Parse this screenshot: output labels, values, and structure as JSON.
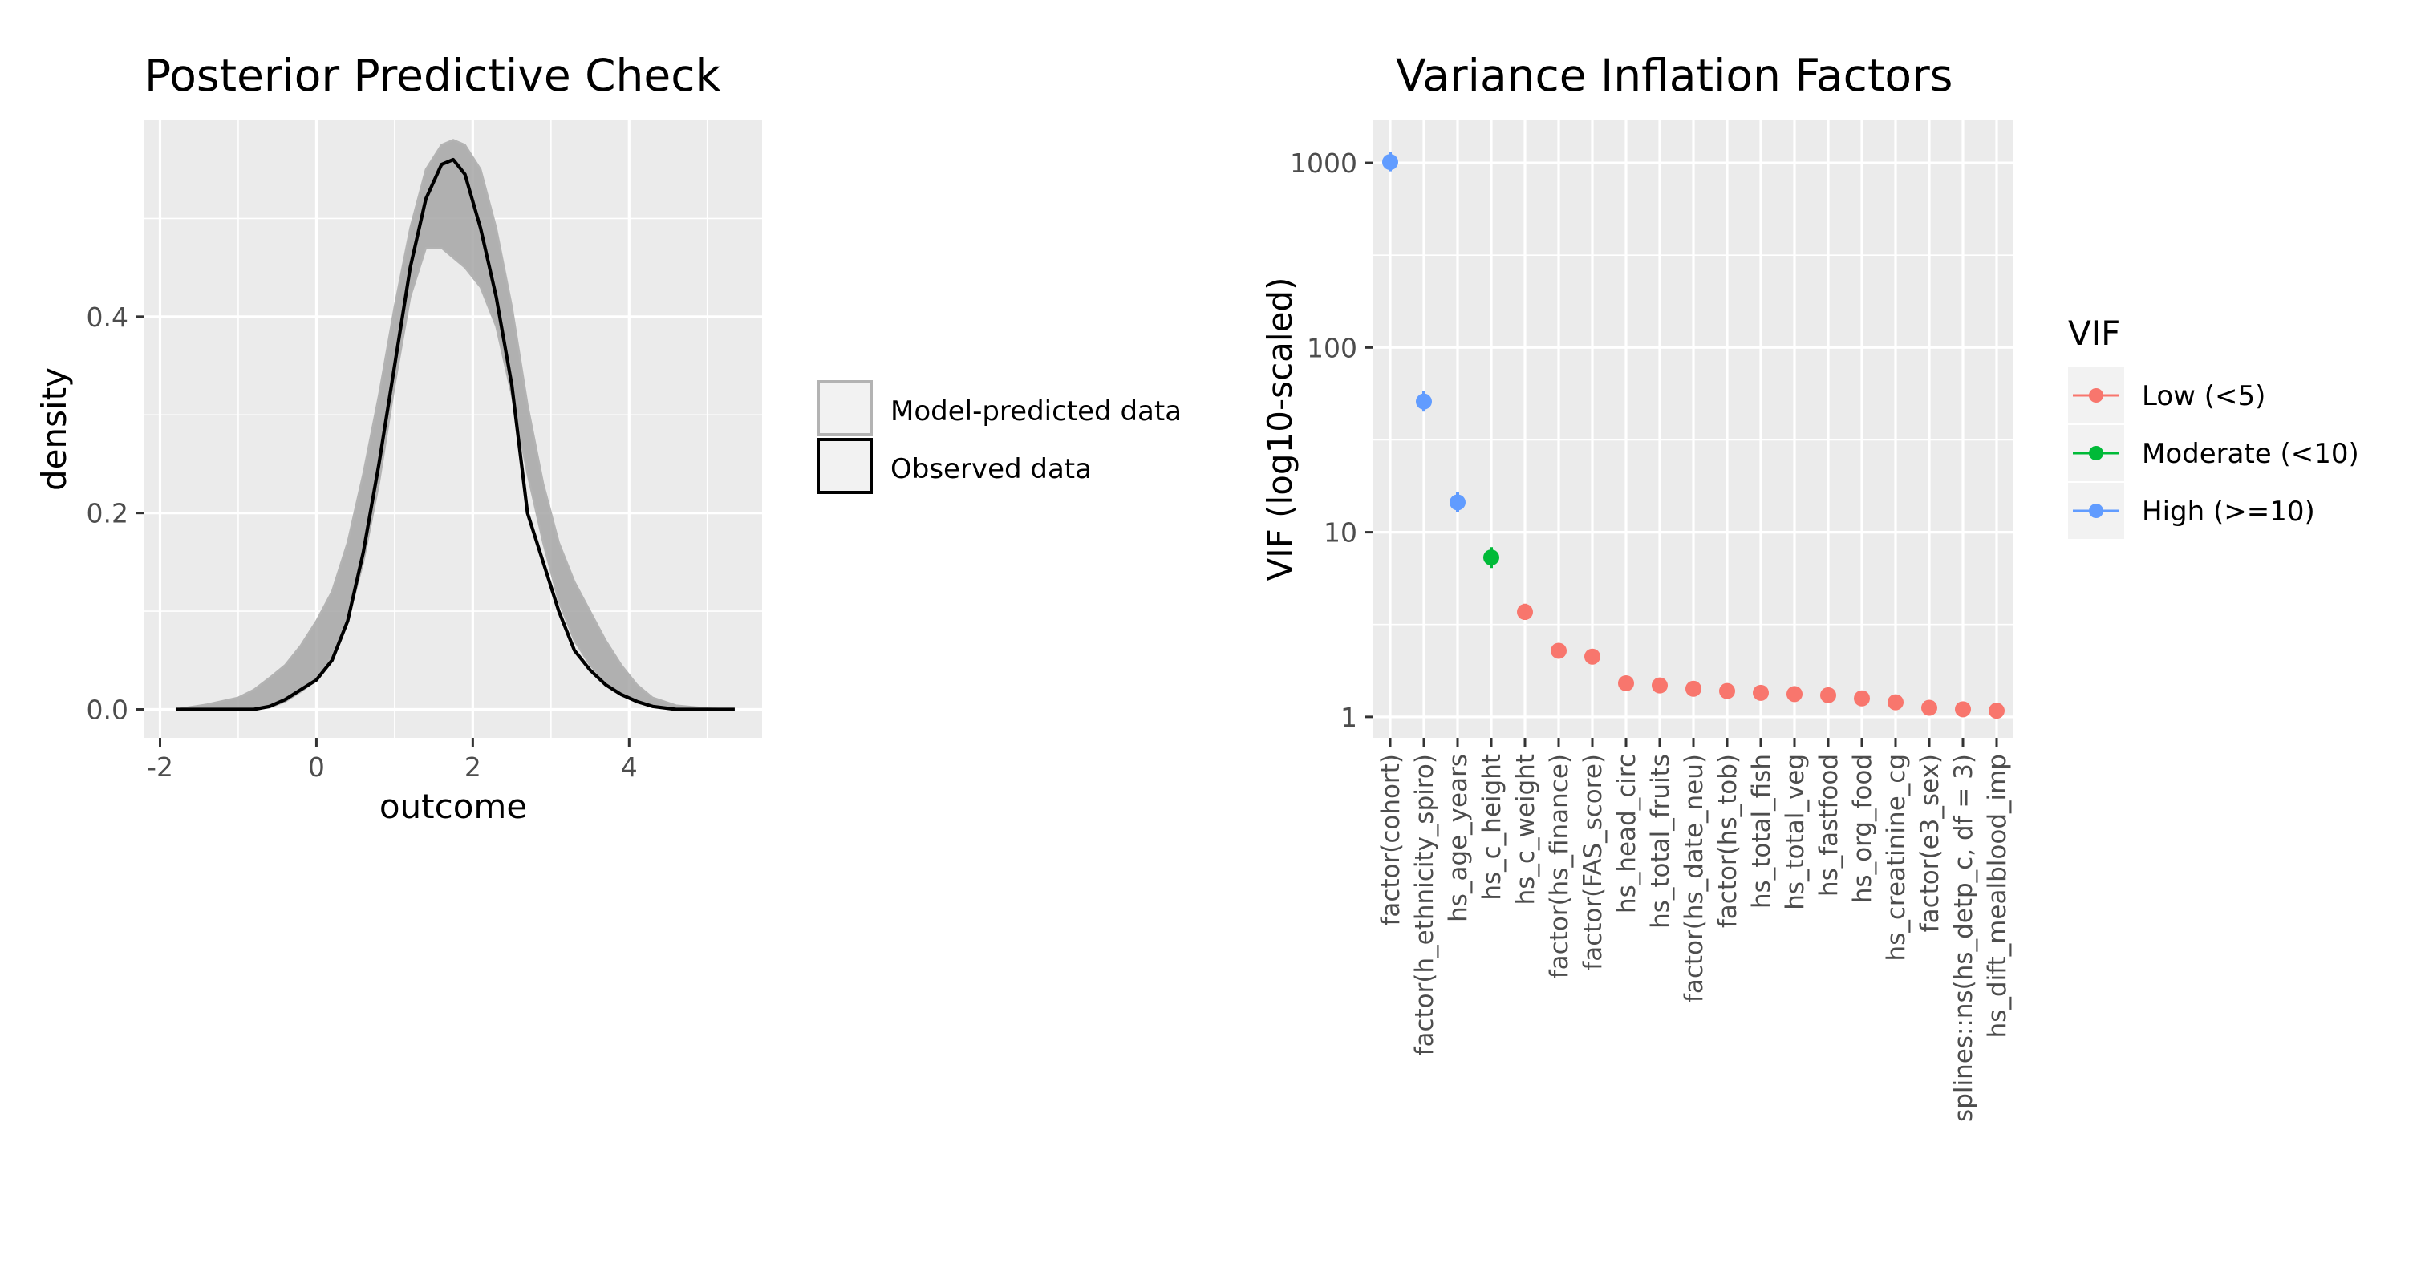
{
  "chart_data": [
    {
      "type": "area",
      "title": "Posterior Predictive Check",
      "xlabel": "outcome",
      "ylabel": "density",
      "xlim": [
        -2.2,
        5.7
      ],
      "ylim": [
        -0.029,
        0.6
      ],
      "x_ticks": [
        -2,
        0,
        2,
        4
      ],
      "x_tick_labels": [
        "-2",
        "0",
        "2",
        "4"
      ],
      "y_ticks": [
        0.0,
        0.2,
        0.4
      ],
      "y_tick_labels": [
        "0.0",
        "0.2",
        "0.4"
      ],
      "grid": true,
      "legend_position": "right",
      "legend": [
        {
          "label": "Model-predicted data",
          "color": "#b3b3b3"
        },
        {
          "label": "Observed data",
          "color": "#000000"
        }
      ],
      "series": [
        {
          "name": "Observed data",
          "color": "#000000",
          "x": [
            -1.8,
            -1.4,
            -1.0,
            -0.8,
            -0.6,
            -0.4,
            -0.2,
            0.0,
            0.2,
            0.4,
            0.6,
            0.8,
            1.0,
            1.2,
            1.4,
            1.6,
            1.75,
            1.9,
            2.1,
            2.3,
            2.5,
            2.7,
            2.9,
            3.1,
            3.3,
            3.5,
            3.7,
            3.9,
            4.1,
            4.3,
            4.6,
            5.0,
            5.35
          ],
          "y": [
            0.0,
            0.0,
            0.0,
            0.0,
            0.003,
            0.01,
            0.02,
            0.03,
            0.05,
            0.09,
            0.16,
            0.25,
            0.35,
            0.45,
            0.52,
            0.555,
            0.56,
            0.545,
            0.49,
            0.42,
            0.33,
            0.2,
            0.15,
            0.1,
            0.06,
            0.04,
            0.025,
            0.015,
            0.008,
            0.003,
            0.0,
            0.0,
            0.0
          ]
        }
      ],
      "predicted_band": {
        "name": "Model-predicted data",
        "color": "#b3b3b3",
        "x": [
          -1.8,
          -1.4,
          -1.0,
          -0.8,
          -0.6,
          -0.4,
          -0.2,
          0.0,
          0.2,
          0.4,
          0.6,
          0.8,
          1.0,
          1.2,
          1.4,
          1.6,
          1.75,
          1.9,
          2.1,
          2.3,
          2.5,
          2.7,
          2.9,
          3.1,
          3.3,
          3.5,
          3.7,
          3.9,
          4.1,
          4.3,
          4.6,
          5.0,
          5.35
        ],
        "y_low": [
          0.0,
          0.0,
          0.0,
          0.0,
          0.002,
          0.008,
          0.018,
          0.03,
          0.055,
          0.09,
          0.15,
          0.23,
          0.33,
          0.42,
          0.47,
          0.47,
          0.46,
          0.45,
          0.43,
          0.39,
          0.32,
          0.24,
          0.17,
          0.11,
          0.07,
          0.045,
          0.028,
          0.015,
          0.007,
          0.003,
          0.0,
          0.0,
          0.0
        ],
        "y_high": [
          0.0,
          0.005,
          0.012,
          0.02,
          0.032,
          0.045,
          0.065,
          0.09,
          0.12,
          0.17,
          0.24,
          0.32,
          0.41,
          0.49,
          0.55,
          0.575,
          0.58,
          0.575,
          0.55,
          0.49,
          0.41,
          0.31,
          0.23,
          0.17,
          0.13,
          0.1,
          0.07,
          0.045,
          0.025,
          0.012,
          0.004,
          0.001,
          0.0
        ]
      }
    },
    {
      "type": "scatter",
      "title": "Variance Inflation Factors",
      "xlabel": "",
      "ylabel": "VIF (log10-scaled)",
      "y_scale": "log10",
      "ylim": [
        0.77,
        1700
      ],
      "y_ticks": [
        1,
        10,
        100,
        1000
      ],
      "y_tick_labels": [
        "1",
        "10",
        "100",
        "1000"
      ],
      "grid": true,
      "legend_position": "right",
      "legend_title": "VIF",
      "legend": [
        {
          "label": "Low (<5)",
          "color": "#F8766D"
        },
        {
          "label": "Moderate (<10)",
          "color": "#00BA38"
        },
        {
          "label": "High (>=10)",
          "color": "#619CFF"
        }
      ],
      "categories": [
        "factor(cohort)",
        "factor(h_ethnicity_spiro)",
        "hs_age_years",
        "hs_c_height",
        "hs_c_weight",
        "factor(hs_finance)",
        "factor(FAS_score)",
        "hs_head_circ",
        "hs_total_fruits",
        "factor(hs_date_neu)",
        "factor(hs_tob)",
        "hs_total_fish",
        "hs_total_veg",
        "hs_fastfood",
        "hs_org_food",
        "hs_creatinine_cg",
        "factor(e3_sex)",
        "splines::ns(hs_detp_c, df = 3)",
        "hs_dift_mealblood_imp"
      ],
      "values": [
        1010,
        51,
        14.5,
        7.3,
        3.7,
        2.28,
        2.12,
        1.52,
        1.48,
        1.42,
        1.38,
        1.35,
        1.33,
        1.31,
        1.26,
        1.2,
        1.12,
        1.1,
        1.08
      ],
      "ci_low": [
        900,
        45,
        12.8,
        6.4,
        3.35,
        2.1,
        1.96,
        1.44,
        1.41,
        1.36,
        1.32,
        1.3,
        1.28,
        1.26,
        1.21,
        1.16,
        1.08,
        1.06,
        1.04
      ],
      "ci_high": [
        1150,
        58,
        16.5,
        8.3,
        4.1,
        2.48,
        2.3,
        1.61,
        1.56,
        1.49,
        1.45,
        1.41,
        1.39,
        1.37,
        1.32,
        1.25,
        1.17,
        1.15,
        1.13
      ],
      "groups": [
        "High (>=10)",
        "High (>=10)",
        "High (>=10)",
        "Moderate (<10)",
        "Low (<5)",
        "Low (<5)",
        "Low (<5)",
        "Low (<5)",
        "Low (<5)",
        "Low (<5)",
        "Low (<5)",
        "Low (<5)",
        "Low (<5)",
        "Low (<5)",
        "Low (<5)",
        "Low (<5)",
        "Low (<5)",
        "Low (<5)",
        "Low (<5)"
      ]
    }
  ]
}
